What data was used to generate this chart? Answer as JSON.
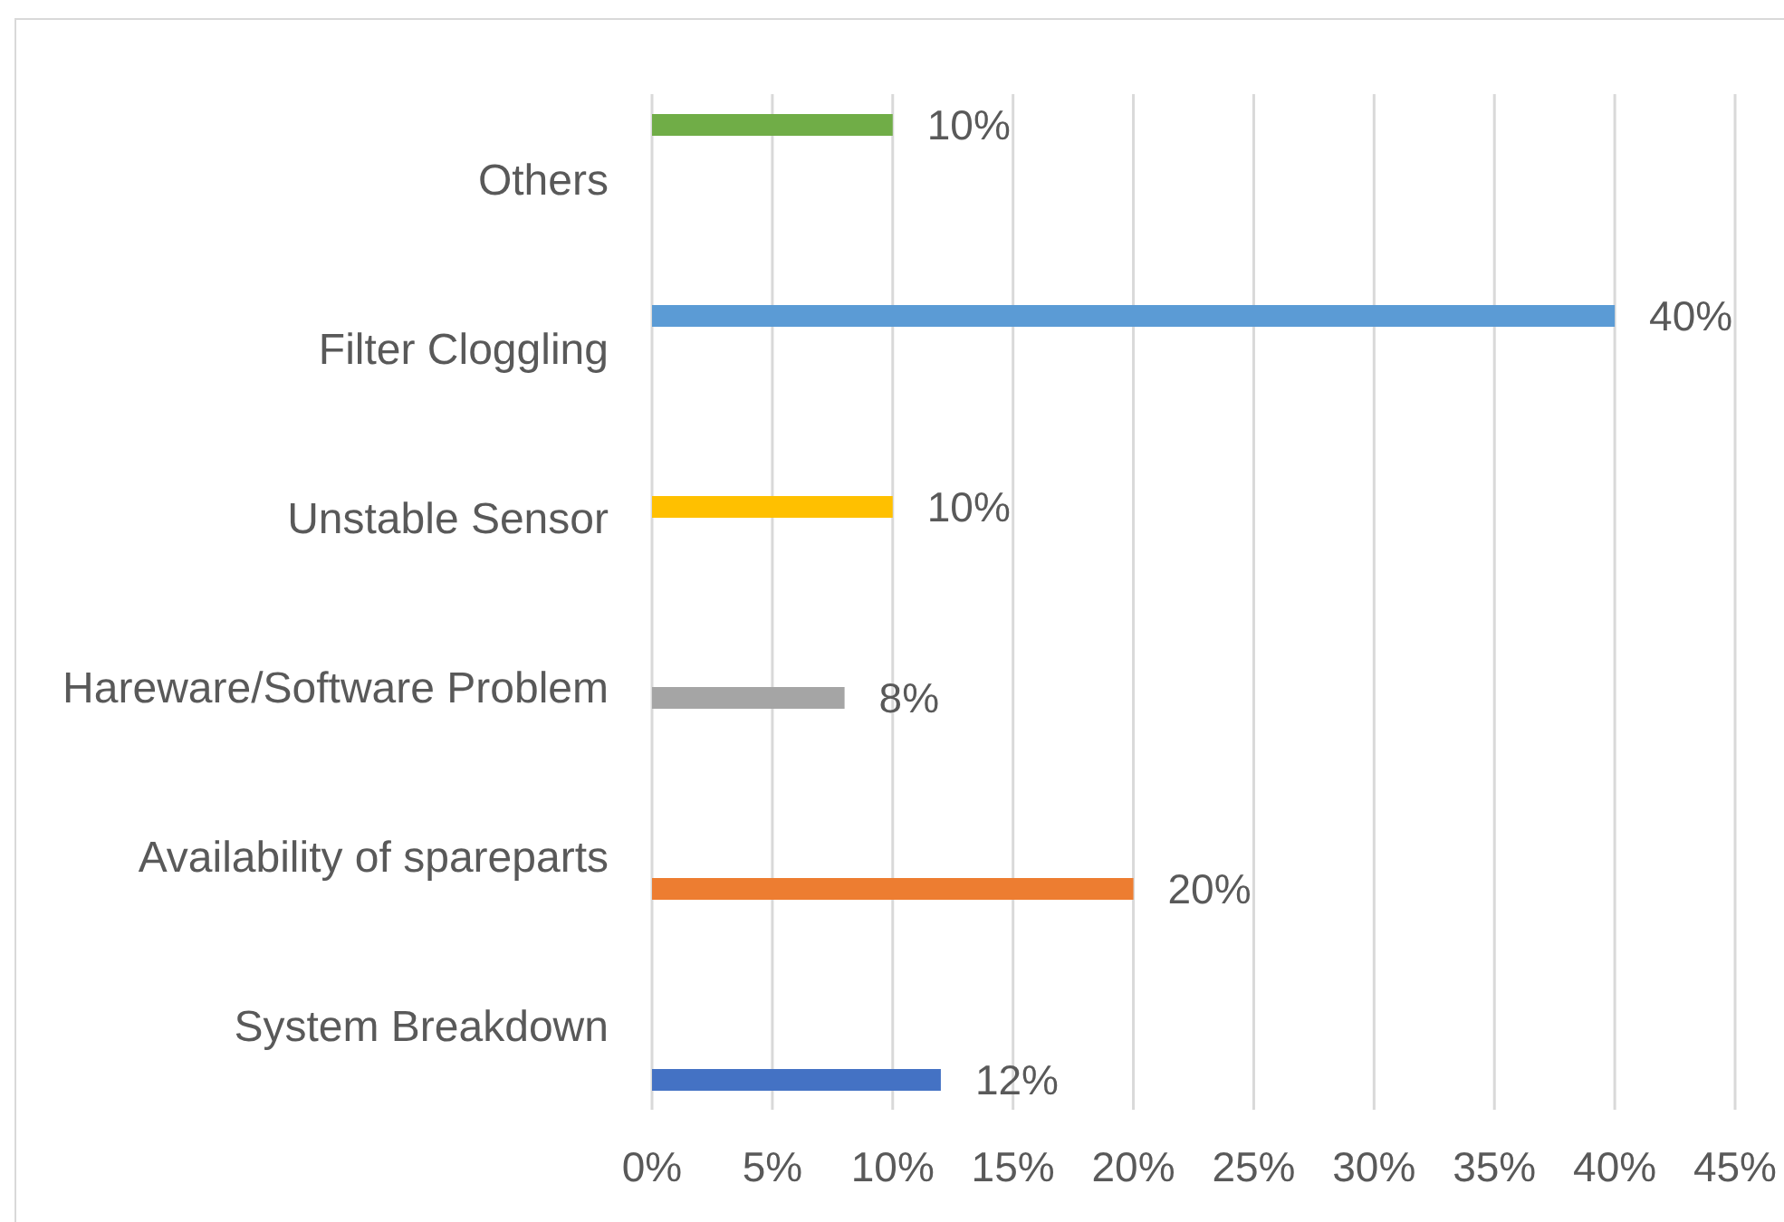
{
  "chart_data": {
    "type": "bar",
    "orientation": "horizontal",
    "categories": [
      "Others",
      "Filter Cloggling",
      "Unstable Sensor",
      "Hareware/Software Problem",
      "Availability of spareparts",
      "System Breakdown"
    ],
    "series": [
      {
        "color": "#70ad47",
        "values": [
          10,
          null,
          null,
          null,
          null,
          null
        ],
        "value_labels": [
          "10%",
          null,
          null,
          null,
          null,
          null
        ]
      },
      {
        "color": "#5b9bd5",
        "values": [
          null,
          40,
          null,
          null,
          null,
          null
        ],
        "value_labels": [
          null,
          "40%",
          null,
          null,
          null,
          null
        ]
      },
      {
        "color": "#ffc000",
        "values": [
          null,
          null,
          10,
          null,
          null,
          null
        ],
        "value_labels": [
          null,
          null,
          "10%",
          null,
          null,
          null
        ]
      },
      {
        "color": "#a5a5a5",
        "values": [
          null,
          null,
          null,
          8,
          null,
          null
        ],
        "value_labels": [
          null,
          null,
          null,
          "8%",
          null,
          null
        ]
      },
      {
        "color": "#ed7d31",
        "values": [
          null,
          null,
          null,
          null,
          20,
          null
        ],
        "value_labels": [
          null,
          null,
          null,
          null,
          "20%",
          null
        ]
      },
      {
        "color": "#4472c4",
        "values": [
          null,
          null,
          null,
          null,
          null,
          12
        ],
        "value_labels": [
          null,
          null,
          null,
          null,
          null,
          "12%"
        ]
      }
    ],
    "xlim": [
      0,
      45
    ],
    "xticks": [
      {
        "value": 0,
        "label": "0%"
      },
      {
        "value": 5,
        "label": "5%"
      },
      {
        "value": 10,
        "label": "10%"
      },
      {
        "value": 15,
        "label": "15%"
      },
      {
        "value": 20,
        "label": "20%"
      },
      {
        "value": 25,
        "label": "25%"
      },
      {
        "value": 30,
        "label": "30%"
      },
      {
        "value": 35,
        "label": "35%"
      },
      {
        "value": 40,
        "label": "40%"
      },
      {
        "value": 45,
        "label": "45%"
      }
    ],
    "grid": "x"
  }
}
